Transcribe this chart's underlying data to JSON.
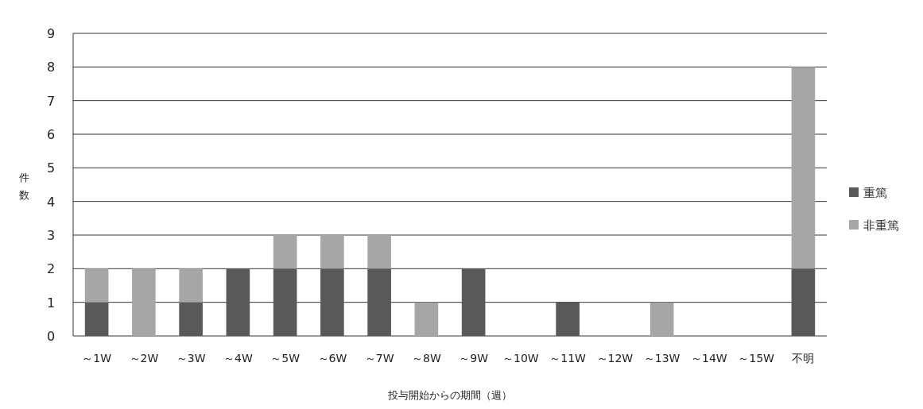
{
  "chart_data": {
    "type": "bar",
    "stacked": true,
    "xlabel": "投与開始からの期間（週）",
    "ylabel": "件数",
    "categories": [
      "～1W",
      "～2W",
      "～3W",
      "～4W",
      "～5W",
      "～6W",
      "～7W",
      "～8W",
      "～9W",
      "～10W",
      "～11W",
      "～12W",
      "～13W",
      "～14W",
      "～15W",
      "不明"
    ],
    "series": [
      {
        "name": "重篤",
        "color": "#595959",
        "values": [
          1,
          0,
          1,
          2,
          2,
          2,
          2,
          0,
          2,
          0,
          1,
          0,
          0,
          0,
          0,
          2
        ]
      },
      {
        "name": "非重篤",
        "color": "#a6a6a6",
        "values": [
          1,
          2,
          1,
          0,
          1,
          1,
          1,
          1,
          0,
          0,
          0,
          0,
          1,
          0,
          0,
          6
        ]
      }
    ],
    "ylim": [
      0,
      9
    ],
    "yticks": [
      0,
      1,
      2,
      3,
      4,
      5,
      6,
      7,
      8,
      9
    ],
    "grid": "y",
    "legend": "right"
  }
}
